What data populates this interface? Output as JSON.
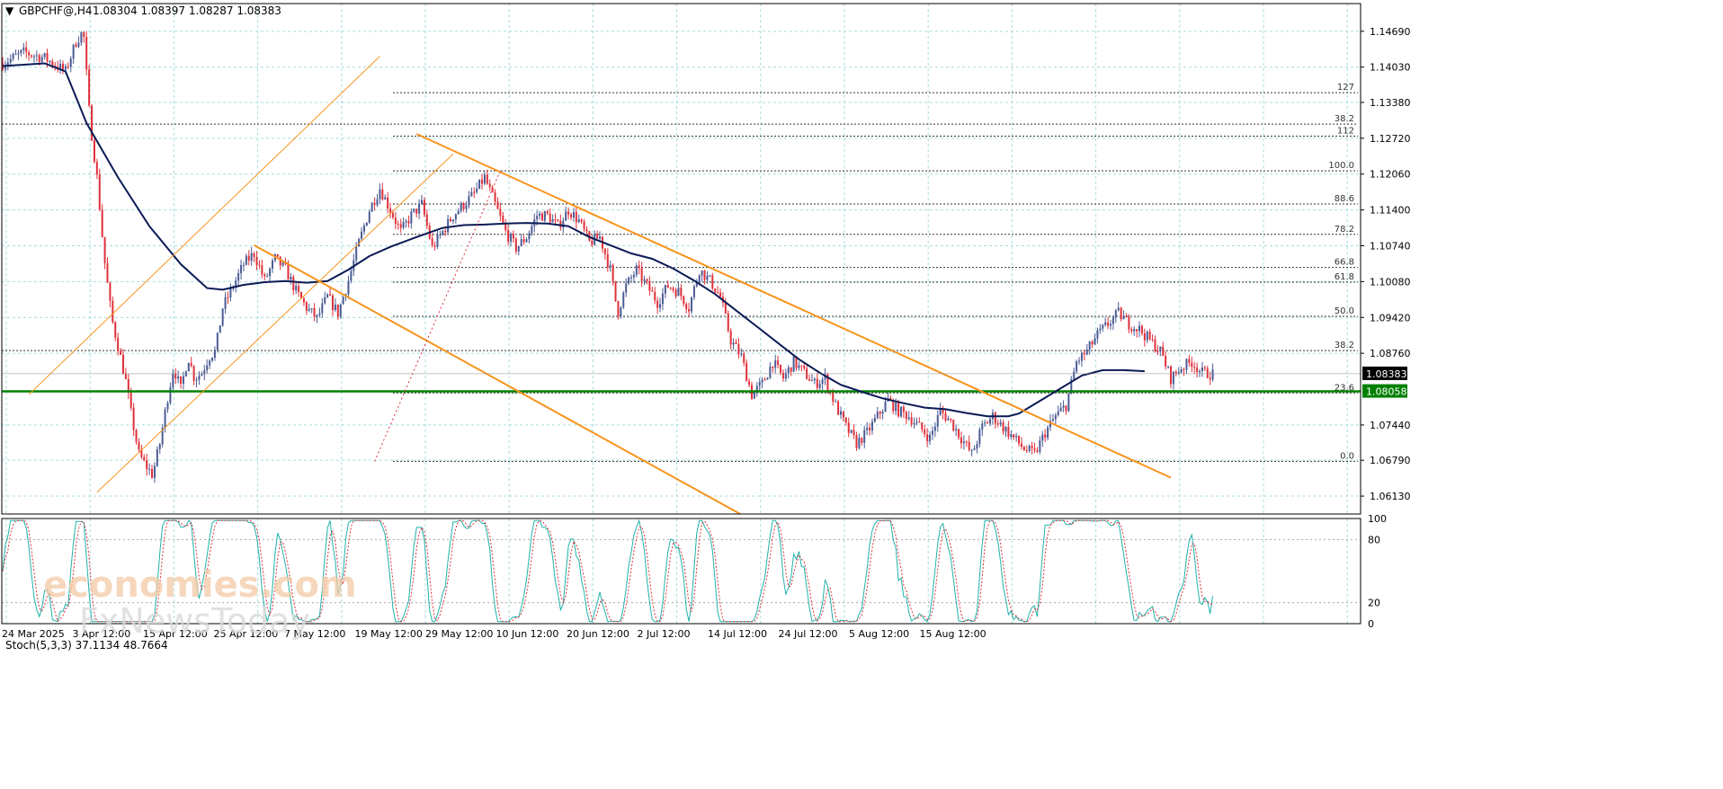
{
  "header": {
    "symbol": "GBPCHF@,H4",
    "ohlc": "1.08304 1.08397 1.08287 1.08383"
  },
  "colors": {
    "bull": "#4a5b95",
    "bear": "#e0303a",
    "ma": "#0b1a55",
    "channel": "#f7941d",
    "support": "#008000",
    "grid": "#a8dcdc",
    "stoch_main": "#20b2aa",
    "stoch_signal": "#e0303a"
  },
  "chart_data": [
    {
      "type": "candlestick",
      "title": "GBPCHF@,H4",
      "ylim": [
        1.058,
        1.152
      ],
      "y_ticks": [
        "1.14690",
        "1.14030",
        "1.13380",
        "1.12720",
        "1.12060",
        "1.11400",
        "1.10740",
        "1.10080",
        "1.09420",
        "1.08760",
        "1.07440",
        "1.06790",
        "1.06130"
      ],
      "x_ticks": [
        "24 Mar 2025",
        "3 Apr 12:00",
        "15 Apr 12:00",
        "25 Apr 12:00",
        "7 May 12:00",
        "19 May 12:00",
        "29 May 12:00",
        "10 Jun 12:00",
        "20 Jun 12:00",
        "2 Jul 12:00",
        "14 Jul 12:00",
        "24 Jul 12:00",
        "5 Aug 12:00",
        "15 Aug 12:00"
      ],
      "current_price": "1.08383",
      "support_level": "1.08058",
      "fibonacci_levels": [
        {
          "label": "127",
          "value": 1.1356
        },
        {
          "label": "112",
          "value": 1.1276
        },
        {
          "label": "100.0",
          "value": 1.1212
        },
        {
          "label": "88.6",
          "value": 1.1151
        },
        {
          "label": "78.2",
          "value": 1.1095
        },
        {
          "label": "66.8",
          "value": 1.1034
        },
        {
          "label": "61.8",
          "value": 1.1007
        },
        {
          "label": "50.0",
          "value": 1.0944
        },
        {
          "label": "38.2",
          "value": 1.0881
        },
        {
          "label": "23.6",
          "value": 1.0803
        },
        {
          "label": "0.0",
          "value": 1.0677
        }
      ],
      "extra_levels": [
        {
          "label": "38.2",
          "value": 1.1298
        }
      ],
      "moving_average": {
        "name": "",
        "points": [
          [
            0,
            1.1405
          ],
          [
            4,
            1.141
          ],
          [
            6,
            1.1395
          ],
          [
            8,
            1.13
          ],
          [
            11,
            1.12
          ],
          [
            14,
            1.111
          ],
          [
            17,
            1.104
          ],
          [
            19.5,
            1.0996
          ],
          [
            21,
            1.0993
          ],
          [
            23,
            1.1002
          ],
          [
            25,
            1.1007
          ],
          [
            27,
            1.1009
          ],
          [
            29,
            1.1006
          ],
          [
            31,
            1.1009
          ],
          [
            33,
            1.103
          ],
          [
            35,
            1.1055
          ],
          [
            37,
            1.1072
          ],
          [
            39.5,
            1.109
          ],
          [
            42,
            1.1107
          ],
          [
            44,
            1.1112
          ],
          [
            46,
            1.1113
          ],
          [
            48,
            1.1115
          ],
          [
            50,
            1.1116
          ],
          [
            52,
            1.1115
          ],
          [
            54,
            1.111
          ],
          [
            56,
            1.109
          ],
          [
            58,
            1.1075
          ],
          [
            60,
            1.106
          ],
          [
            62,
            1.105
          ],
          [
            64,
            1.1032
          ],
          [
            66,
            1.101
          ],
          [
            68,
            1.0985
          ],
          [
            70,
            1.0955
          ],
          [
            72,
            1.0925
          ],
          [
            74,
            1.0895
          ],
          [
            76,
            1.0865
          ],
          [
            78,
            1.084
          ],
          [
            80,
            1.0818
          ],
          [
            82,
            1.0805
          ],
          [
            84,
            1.0793
          ],
          [
            86,
            1.0784
          ],
          [
            88,
            1.0776
          ],
          [
            90,
            1.0773
          ],
          [
            92,
            1.0766
          ],
          [
            94,
            1.076
          ],
          [
            96,
            1.076
          ],
          [
            97,
            1.0765
          ],
          [
            100,
            1.08
          ],
          [
            103,
            1.0835
          ],
          [
            105,
            1.0845
          ],
          [
            107,
            1.0845
          ],
          [
            109,
            1.0843
          ]
        ]
      },
      "channels": [
        {
          "from": [
            2.5,
            1.08
          ],
          "to": [
            36,
            1.1423
          ]
        },
        {
          "from": [
            9,
            1.062
          ],
          "to": [
            43,
            1.1243
          ]
        },
        {
          "from": [
            24,
            1.1075
          ],
          "to": [
            70.4,
            1.058
          ]
        },
        {
          "from": [
            39.5,
            1.128
          ],
          "to": [
            111.5,
            1.0647
          ]
        }
      ],
      "fib_line": {
        "from": [
          35.5,
          1.0677
        ],
        "to": [
          47.5,
          1.1212
        ]
      },
      "close_path": [
        [
          0,
          1.141
        ],
        [
          2,
          1.143
        ],
        [
          4,
          1.142
        ],
        [
          6,
          1.1395
        ],
        [
          7,
          1.145
        ],
        [
          7.7,
          1.147
        ],
        [
          8.3,
          1.131
        ],
        [
          9,
          1.12
        ],
        [
          9.7,
          1.105
        ],
        [
          10.4,
          1.094
        ],
        [
          11,
          1.089
        ],
        [
          11.7,
          1.083
        ],
        [
          12.3,
          1.076
        ],
        [
          13,
          1.069
        ],
        [
          13.7,
          1.0668
        ],
        [
          14.3,
          1.0652
        ],
        [
          15,
          1.071
        ],
        [
          15.7,
          1.079
        ],
        [
          16.3,
          1.085
        ],
        [
          17,
          1.081
        ],
        [
          17.7,
          1.087
        ],
        [
          18.3,
          1.083
        ],
        [
          19,
          1.084
        ],
        [
          19.7,
          1.087
        ],
        [
          20.3,
          1.088
        ],
        [
          21,
          1.096
        ],
        [
          22,
          1.1
        ],
        [
          23,
          1.104
        ],
        [
          24,
          1.106
        ],
        [
          25,
          1.101
        ],
        [
          26,
          1.105
        ],
        [
          27,
          1.103
        ],
        [
          28,
          1.099
        ],
        [
          29,
          1.096
        ],
        [
          30,
          1.094
        ],
        [
          31,
          1.098
        ],
        [
          32,
          1.095
        ],
        [
          33,
          1.101
        ],
        [
          34,
          1.108
        ],
        [
          35,
          1.114
        ],
        [
          36,
          1.118
        ],
        [
          37,
          1.114
        ],
        [
          38,
          1.11
        ],
        [
          39,
          1.113
        ],
        [
          40,
          1.115
        ],
        [
          41,
          1.107
        ],
        [
          42,
          1.11
        ],
        [
          43,
          1.113
        ],
        [
          44,
          1.115
        ],
        [
          45,
          1.117
        ],
        [
          46,
          1.12
        ],
        [
          47,
          1.115
        ],
        [
          48,
          1.11
        ],
        [
          49,
          1.107
        ],
        [
          50,
          1.109
        ],
        [
          51,
          1.113
        ],
        [
          52,
          1.113
        ],
        [
          53,
          1.111
        ],
        [
          54,
          1.114
        ],
        [
          55,
          1.112
        ],
        [
          56,
          1.108
        ],
        [
          57,
          1.109
        ],
        [
          58,
          1.103
        ],
        [
          58.7,
          1.095
        ],
        [
          59.5,
          1.1
        ],
        [
          60.5,
          1.103
        ],
        [
          61.5,
          1.1
        ],
        [
          62.5,
          1.097
        ],
        [
          63.5,
          1.1
        ],
        [
          64.5,
          1.099
        ],
        [
          65.5,
          1.096
        ],
        [
          66.5,
          1.103
        ],
        [
          67.5,
          1.101
        ],
        [
          68.5,
          1.098
        ],
        [
          69.5,
          1.09
        ],
        [
          70.5,
          1.087
        ],
        [
          71.5,
          1.08
        ],
        [
          72.5,
          1.082
        ],
        [
          73.5,
          1.086
        ],
        [
          74.5,
          1.083
        ],
        [
          75.5,
          1.086
        ],
        [
          76.5,
          1.084
        ],
        [
          77.5,
          1.082
        ],
        [
          78.5,
          1.083
        ],
        [
          79.5,
          1.078
        ],
        [
          80.5,
          1.074
        ],
        [
          81.5,
          1.071
        ],
        [
          82.5,
          1.073
        ],
        [
          83.5,
          1.076
        ],
        [
          84.5,
          1.079
        ],
        [
          85.5,
          1.077
        ],
        [
          86.5,
          1.076
        ],
        [
          87.5,
          1.074
        ],
        [
          88.5,
          1.072
        ],
        [
          89.5,
          1.077
        ],
        [
          90.5,
          1.075
        ],
        [
          91.5,
          1.072
        ],
        [
          92.5,
          1.069
        ],
        [
          93.5,
          1.074
        ],
        [
          94.5,
          1.076
        ],
        [
          95.5,
          1.074
        ],
        [
          96.5,
          1.072
        ],
        [
          97.5,
          1.07
        ],
        [
          98.5,
          1.069
        ],
        [
          99.5,
          1.073
        ],
        [
          100.5,
          1.076
        ],
        [
          101.5,
          1.078
        ],
        [
          102.5,
          1.086
        ],
        [
          103.5,
          1.088
        ],
        [
          104.5,
          1.091
        ],
        [
          105.5,
          1.093
        ],
        [
          106.5,
          1.095
        ],
        [
          107.5,
          1.093
        ],
        [
          108.5,
          1.092
        ],
        [
          109.5,
          1.09
        ],
        [
          110.5,
          1.088
        ],
        [
          111.5,
          1.083
        ],
        [
          112.5,
          1.085
        ],
        [
          113.5,
          1.086
        ],
        [
          114.5,
          1.084
        ],
        [
          115.5,
          1.0838
        ]
      ],
      "candle_range": [
        0,
        115.5
      ]
    },
    {
      "type": "line",
      "title": "Stoch(5,3,3) 37.1134 48.7664",
      "ylim": [
        0,
        100
      ],
      "y_ticks": [
        "100",
        "80",
        "20",
        "0"
      ],
      "levels": [
        80,
        20
      ]
    }
  ],
  "watermark": {
    "line1": "economies.com",
    "line2": "FxNewsToday"
  }
}
